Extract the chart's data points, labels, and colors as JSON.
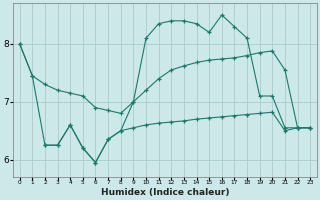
{
  "xlabel": "Humidex (Indice chaleur)",
  "bg_color": "#cce8e8",
  "grid_color": "#aacccc",
  "line_color": "#1a7a6a",
  "xlim": [
    -0.5,
    23.5
  ],
  "ylim": [
    5.7,
    8.7
  ],
  "yticks": [
    6,
    7,
    8
  ],
  "xticks": [
    0,
    1,
    2,
    3,
    4,
    5,
    6,
    7,
    8,
    9,
    10,
    11,
    12,
    13,
    14,
    15,
    16,
    17,
    18,
    19,
    20,
    21,
    22,
    23
  ],
  "line1_x": [
    0,
    1,
    2,
    3,
    4,
    5,
    6,
    7,
    8,
    9,
    10,
    11,
    12,
    13,
    14,
    15,
    16,
    17,
    18,
    19,
    20,
    21,
    22,
    23
  ],
  "line1_y": [
    8.0,
    7.45,
    7.3,
    7.2,
    7.15,
    7.1,
    6.9,
    6.85,
    6.8,
    7.0,
    7.2,
    7.4,
    7.55,
    7.62,
    7.68,
    7.72,
    7.74,
    7.76,
    7.8,
    7.85,
    7.88,
    7.55,
    6.55,
    6.55
  ],
  "line2_x": [
    0,
    1,
    2,
    3,
    4,
    5,
    6,
    7,
    8,
    9,
    10,
    11,
    12,
    13,
    14,
    15,
    16,
    17,
    18,
    19,
    20,
    21,
    22,
    23
  ],
  "line2_y": [
    8.0,
    7.45,
    6.25,
    6.25,
    6.6,
    6.2,
    5.95,
    6.35,
    6.5,
    7.0,
    8.1,
    8.35,
    8.4,
    8.4,
    8.35,
    8.2,
    8.5,
    8.3,
    8.1,
    7.1,
    7.1,
    6.55,
    6.55,
    6.55
  ],
  "line3_x": [
    2,
    3,
    4,
    5,
    6,
    7,
    8,
    9,
    10,
    11,
    12,
    13,
    14,
    15,
    16,
    17,
    18,
    19,
    20,
    21,
    22,
    23
  ],
  "line3_y": [
    6.25,
    6.25,
    6.6,
    6.2,
    5.95,
    6.35,
    6.5,
    6.55,
    6.6,
    6.63,
    6.65,
    6.67,
    6.7,
    6.72,
    6.74,
    6.76,
    6.78,
    6.8,
    6.82,
    6.5,
    6.55,
    6.55
  ]
}
